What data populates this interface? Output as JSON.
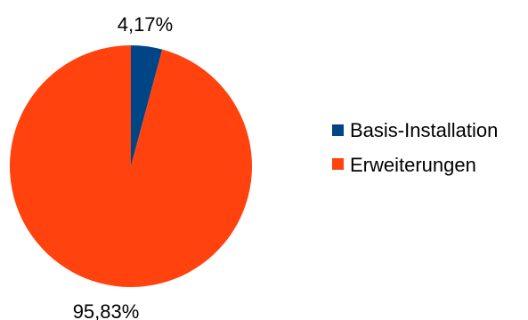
{
  "chart_data": {
    "type": "pie",
    "slices": [
      {
        "name": "Basis-Installation",
        "value": 4.17,
        "label": "4,17%",
        "color": "#004586"
      },
      {
        "name": "Erweiterungen",
        "value": 95.83,
        "label": "95,83%",
        "color": "#ff420e"
      }
    ],
    "legend_position": "right",
    "title": ""
  }
}
